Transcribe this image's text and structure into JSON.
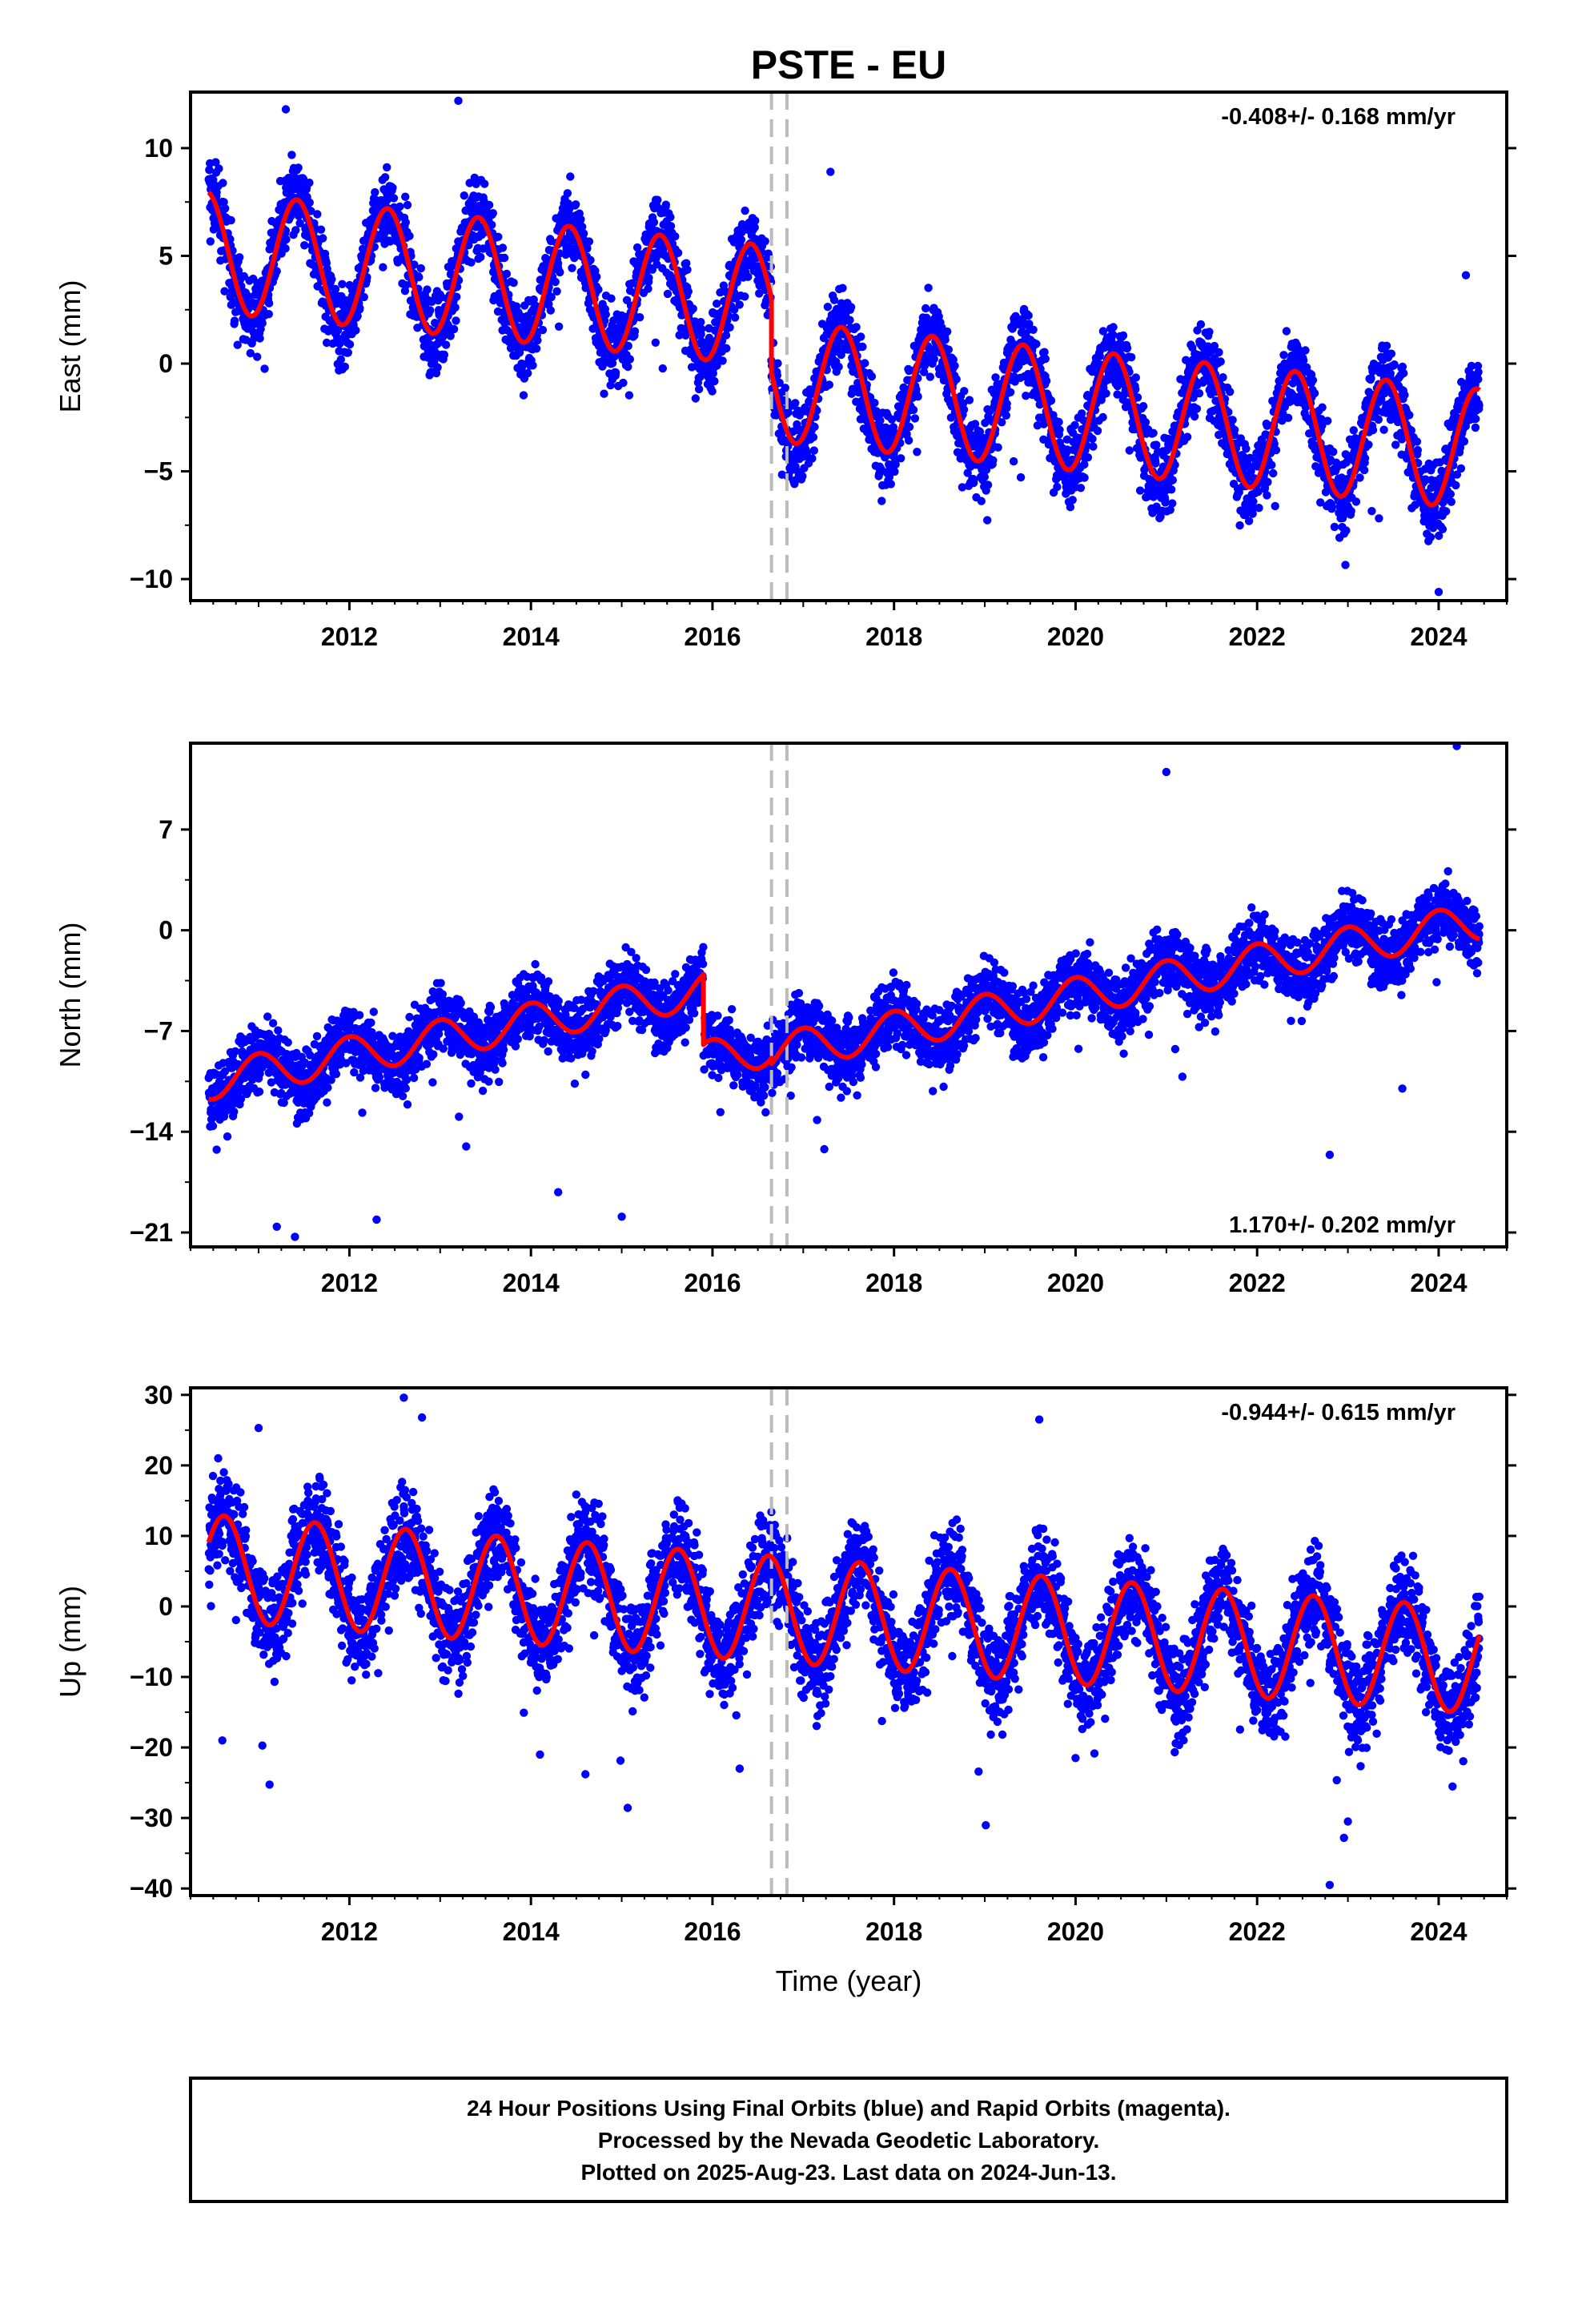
{
  "chart_data": {
    "title": "PSTE - EU",
    "type": "scatter",
    "xlabel": "Time (year)",
    "xlim": [
      2010.25,
      2024.75
    ],
    "xticks": [
      2012,
      2014,
      2016,
      2018,
      2020,
      2022,
      2024
    ],
    "steps": [
      2016.65,
      2016.82
    ],
    "colors": {
      "final_points": "#0000ff",
      "model": "#ff0000",
      "steps": "#bbbbbb"
    },
    "panels": [
      {
        "ylabel": "East (mm)",
        "ylim": [
          -11,
          12.6
        ],
        "yticks": [
          -10,
          -5,
          0,
          5,
          10
        ],
        "rate": "-0.408+/- 0.168 mm/yr",
        "rate_position": "top-right",
        "model": {
          "segments": [
            {
              "t_start": 2010.45,
              "t_end": 2016.65,
              "offset": 5.2,
              "trend": -0.408,
              "annual_amplitude": 2.8,
              "annual_peak": 2011.42
            },
            {
              "t_start": 2016.65,
              "t_end": 2024.45,
              "offset": -0.8,
              "trend": -0.408,
              "annual_amplitude": 2.8,
              "annual_peak": 2011.42
            }
          ]
        },
        "scatter_sd": 1.3,
        "outliers": [
          [
            2011.3,
            11.8
          ],
          [
            2013.2,
            12.2
          ],
          [
            2017.3,
            8.9
          ],
          [
            2024.3,
            4.1
          ],
          [
            2024.0,
            -10.6
          ]
        ]
      },
      {
        "ylabel": "North (mm)",
        "ylim": [
          -22,
          13
        ],
        "yticks": [
          -21,
          -14,
          -7,
          0,
          7
        ],
        "rate": "1.170+/- 0.202 mm/yr",
        "rate_position": "bottom-right",
        "model": {
          "segments": [
            {
              "t_start": 2010.45,
              "t_end": 2015.9,
              "offset": -10.5,
              "trend": 1.17,
              "annual_amplitude": 1.3,
              "annual_peak": 2011.0
            },
            {
              "t_start": 2015.9,
              "t_end": 2016.65,
              "offset": -9.0,
              "trend": 1.17,
              "annual_amplitude": 1.3,
              "annual_peak": 2011.0
            },
            {
              "t_start": 2016.65,
              "t_end": 2024.45,
              "offset": -8.5,
              "trend": 1.17,
              "annual_amplitude": 1.3,
              "annual_peak": 2011.0
            }
          ]
        },
        "scatter_sd": 1.6,
        "outliers": [
          [
            2011.2,
            -20.6
          ],
          [
            2011.4,
            -21.3
          ],
          [
            2012.3,
            -20.1
          ],
          [
            2014.3,
            -18.2
          ],
          [
            2015.0,
            -19.9
          ],
          [
            2017.8,
            -9.5
          ],
          [
            2021.0,
            11.0
          ],
          [
            2022.8,
            -15.6
          ],
          [
            2023.6,
            -11.0
          ],
          [
            2024.2,
            12.8
          ]
        ]
      },
      {
        "ylabel": "Up (mm)",
        "ylim": [
          -41,
          31
        ],
        "yticks": [
          -40,
          -30,
          -20,
          -10,
          0,
          10,
          20,
          30
        ],
        "rate": "-0.944+/- 0.615 mm/yr",
        "rate_position": "top-right",
        "model": {
          "segments": [
            {
              "t_start": 2010.45,
              "t_end": 2024.45,
              "offset": 5.5,
              "trend": -0.944,
              "annual_amplitude": 7.5,
              "annual_peak": 2010.62
            }
          ]
        },
        "scatter_sd": 4.8,
        "outliers": [
          [
            2012.6,
            29.6
          ],
          [
            2012.8,
            26.8
          ],
          [
            2011.0,
            25.3
          ],
          [
            2019.6,
            26.5
          ],
          [
            2010.6,
            -19.0
          ],
          [
            2014.6,
            -23.8
          ],
          [
            2014.1,
            -21.0
          ],
          [
            2016.3,
            -23.0
          ],
          [
            2020.0,
            -21.5
          ],
          [
            2022.8,
            -39.5
          ],
          [
            2023.0,
            -30.5
          ]
        ]
      }
    ]
  },
  "footer": {
    "line1": "24 Hour Positions Using Final Orbits (blue) and Rapid Orbits (magenta).",
    "line2": "Processed by the Nevada Geodetic Laboratory.",
    "line3": "Plotted on 2025-Aug-23. Last data on 2024-Jun-13."
  }
}
